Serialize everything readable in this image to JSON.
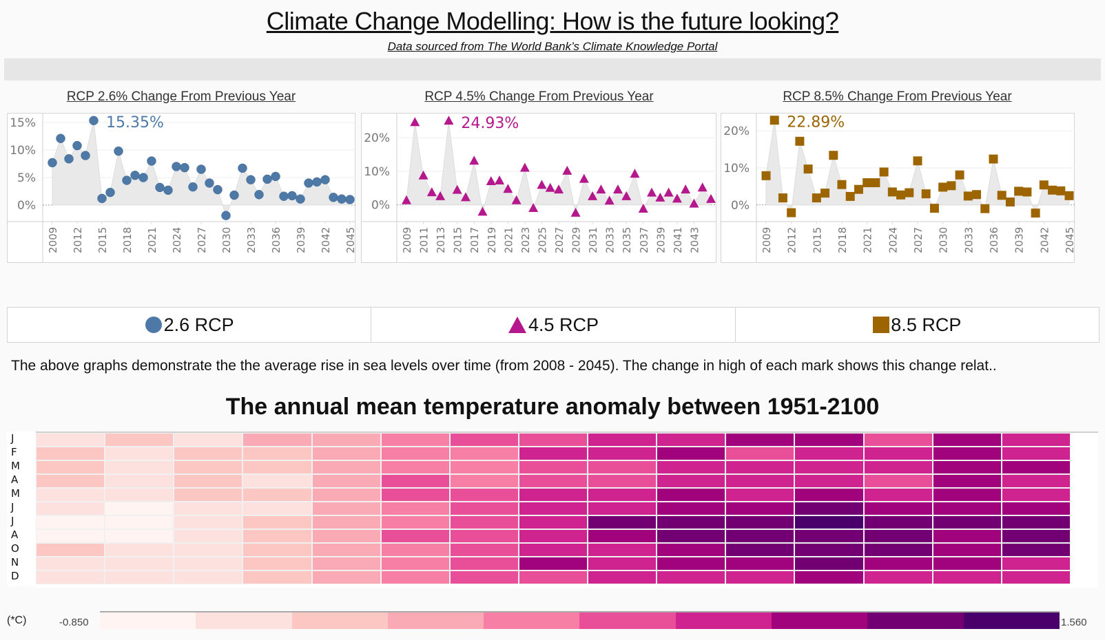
{
  "header": {
    "title": "Climate Change Modelling: How is the future looking?",
    "subtitle": "Data sourced from The World Bank’s Climate Knowledge Portal"
  },
  "chart_data": [
    {
      "type": "area",
      "title": "RCP 2.6% Change From Previous Year",
      "marker": "circle",
      "color": "#4e79a7",
      "annotation": "15.35%",
      "ylim": [
        -3,
        16.5
      ],
      "yticks": [
        0,
        5,
        10,
        15
      ],
      "ytick_labels": [
        "0%",
        "5%",
        "10%",
        "15%"
      ],
      "xtick_labels": [
        "2009",
        "2012",
        "2015",
        "2018",
        "2021",
        "2024",
        "2027",
        "2030",
        "2033",
        "2036",
        "2039",
        "2042",
        "2045"
      ],
      "x": [
        2009,
        2010,
        2011,
        2012,
        2013,
        2014,
        2015,
        2016,
        2017,
        2018,
        2019,
        2020,
        2021,
        2022,
        2023,
        2024,
        2025,
        2026,
        2027,
        2028,
        2029,
        2030,
        2031,
        2032,
        2033,
        2034,
        2035,
        2036,
        2037,
        2038,
        2039,
        2040,
        2041,
        2042,
        2043,
        2044,
        2045
      ],
      "values": [
        7.7,
        12.1,
        8.4,
        10.8,
        9.0,
        15.35,
        1.2,
        2.3,
        9.8,
        4.5,
        5.4,
        5.0,
        8.0,
        3.2,
        2.7,
        7.0,
        6.8,
        3.3,
        6.5,
        4.0,
        2.8,
        -1.9,
        1.8,
        6.7,
        4.6,
        1.9,
        4.7,
        5.2,
        1.6,
        1.7,
        1.1,
        4.0,
        4.2,
        4.6,
        1.4,
        1.1,
        1.0
      ],
      "grid": true
    },
    {
      "type": "area",
      "title": "RCP 4.5% Change From Previous Year",
      "marker": "triangle",
      "color": "#b5178c",
      "annotation": "24.93%",
      "ylim": [
        -5,
        27
      ],
      "yticks": [
        0,
        10,
        20
      ],
      "ytick_labels": [
        "0%",
        "10%",
        "20%"
      ],
      "xtick_labels": [
        "2009",
        "2011",
        "2013",
        "2015",
        "2017",
        "2019",
        "2021",
        "2023",
        "2025",
        "2027",
        "2029",
        "2031",
        "2033",
        "2035",
        "2037",
        "2039",
        "2041",
        "2043"
      ],
      "x": [
        2009,
        2010,
        2011,
        2012,
        2013,
        2014,
        2015,
        2016,
        2017,
        2018,
        2019,
        2020,
        2021,
        2022,
        2023,
        2024,
        2025,
        2026,
        2027,
        2028,
        2029,
        2030,
        2031,
        2032,
        2033,
        2034,
        2035,
        2036,
        2037,
        2038,
        2039,
        2040,
        2041,
        2042,
        2043,
        2044,
        2045
      ],
      "values": [
        1.2,
        24.5,
        8.6,
        3.6,
        2.4,
        24.93,
        4.3,
        2.1,
        13.0,
        -2.2,
        6.9,
        7.1,
        4.6,
        1.2,
        10.9,
        -1.1,
        5.8,
        4.9,
        4.4,
        10.0,
        -2.5,
        7.6,
        2.4,
        4.4,
        1.1,
        4.4,
        2.4,
        9.1,
        -1.3,
        3.5,
        2.0,
        3.5,
        1.7,
        4.4,
        0.2,
        5.0,
        1.6
      ],
      "grid": true
    },
    {
      "type": "area",
      "title": "RCP 8.5% Change From Previous Year",
      "marker": "square",
      "color": "#9c6502",
      "annotation": "22.89%",
      "ylim": [
        -4.5,
        24.5
      ],
      "yticks": [
        0,
        10,
        20
      ],
      "ytick_labels": [
        "0%",
        "10%",
        "20%"
      ],
      "xtick_labels": [
        "2009",
        "2012",
        "2015",
        "2018",
        "2021",
        "2024",
        "2027",
        "2030",
        "2033",
        "2036",
        "2039",
        "2042",
        "2045"
      ],
      "x": [
        2009,
        2010,
        2011,
        2012,
        2013,
        2014,
        2015,
        2016,
        2017,
        2018,
        2019,
        2020,
        2021,
        2022,
        2023,
        2024,
        2025,
        2026,
        2027,
        2028,
        2029,
        2030,
        2031,
        2032,
        2033,
        2034,
        2035,
        2036,
        2037,
        2038,
        2039,
        2040,
        2041,
        2042,
        2043,
        2044,
        2045
      ],
      "values": [
        7.9,
        22.89,
        1.9,
        -2.1,
        17.2,
        9.7,
        1.9,
        3.2,
        13.4,
        5.5,
        2.3,
        4.2,
        6.0,
        6.0,
        8.9,
        3.5,
        2.7,
        3.3,
        11.9,
        3.0,
        -0.9,
        4.8,
        5.2,
        8.1,
        2.4,
        2.8,
        -1.0,
        12.4,
        2.6,
        0.8,
        3.7,
        3.5,
        -2.2,
        5.4,
        4.0,
        3.8,
        2.5
      ],
      "grid": true
    },
    {
      "type": "heatmap",
      "title": "The annual mean temperature anomaly between 1951-2100",
      "row_labels": [
        "J",
        "F",
        "M",
        "A",
        "M",
        "J",
        "J",
        "A",
        "O",
        "N",
        "D"
      ],
      "column_count": 15,
      "color_unit": "(*C)",
      "color_range": [
        -0.85,
        1.56
      ],
      "color_range_labels": [
        "-0.850",
        "1.560"
      ],
      "color_steps": [
        "#fff4f1",
        "#fde1de",
        "#fcc7c3",
        "#f9aab5",
        "#f77fa6",
        "#e84f98",
        "#cf248f",
        "#a0037c",
        "#730072",
        "#4a006a"
      ],
      "cells_step_index": [
        [
          1,
          2,
          1,
          3,
          3,
          4,
          5,
          5,
          6,
          6,
          7,
          7,
          5,
          7,
          6
        ],
        [
          2,
          1,
          2,
          2,
          3,
          4,
          4,
          6,
          6,
          7,
          5,
          6,
          6,
          7,
          6
        ],
        [
          2,
          1,
          2,
          2,
          3,
          4,
          4,
          5,
          5,
          6,
          6,
          6,
          6,
          7,
          7
        ],
        [
          2,
          1,
          2,
          1,
          3,
          5,
          4,
          5,
          5,
          6,
          6,
          6,
          5,
          7,
          6
        ],
        [
          1,
          1,
          2,
          2,
          3,
          5,
          5,
          6,
          6,
          7,
          6,
          7,
          6,
          7,
          6
        ],
        [
          1,
          0,
          1,
          1,
          3,
          4,
          5,
          6,
          6,
          7,
          7,
          8,
          7,
          7,
          7
        ],
        [
          0,
          0,
          1,
          2,
          3,
          4,
          5,
          6,
          8,
          8,
          8,
          9,
          8,
          8,
          8
        ],
        [
          0,
          0,
          1,
          2,
          3,
          5,
          5,
          6,
          7,
          8,
          8,
          8,
          8,
          7,
          8
        ],
        [
          2,
          1,
          1,
          2,
          3,
          4,
          5,
          6,
          6,
          7,
          8,
          8,
          8,
          7,
          8
        ],
        [
          1,
          1,
          1,
          2,
          3,
          4,
          5,
          7,
          6,
          7,
          7,
          8,
          7,
          7,
          6
        ],
        [
          1,
          1,
          1,
          2,
          3,
          4,
          5,
          5,
          6,
          6,
          6,
          7,
          6,
          6,
          6
        ]
      ]
    }
  ],
  "legend": {
    "items": [
      {
        "label": "2.6 RCP",
        "shape": "circle-icon",
        "color": "#4e79a7"
      },
      {
        "label": "4.5 RCP",
        "shape": "triangle-icon",
        "color": "#b5178c"
      },
      {
        "label": "8.5 RCP",
        "shape": "square-icon",
        "color": "#9c6502"
      }
    ]
  },
  "description": "The above graphs demonstrate the the average rise in sea levels over time (from 2008 - 2045). The change in high of each mark shows this change relat..",
  "heatmap_legend": {
    "unit": "(*C)",
    "min": "-0.850",
    "max": "1.560"
  }
}
